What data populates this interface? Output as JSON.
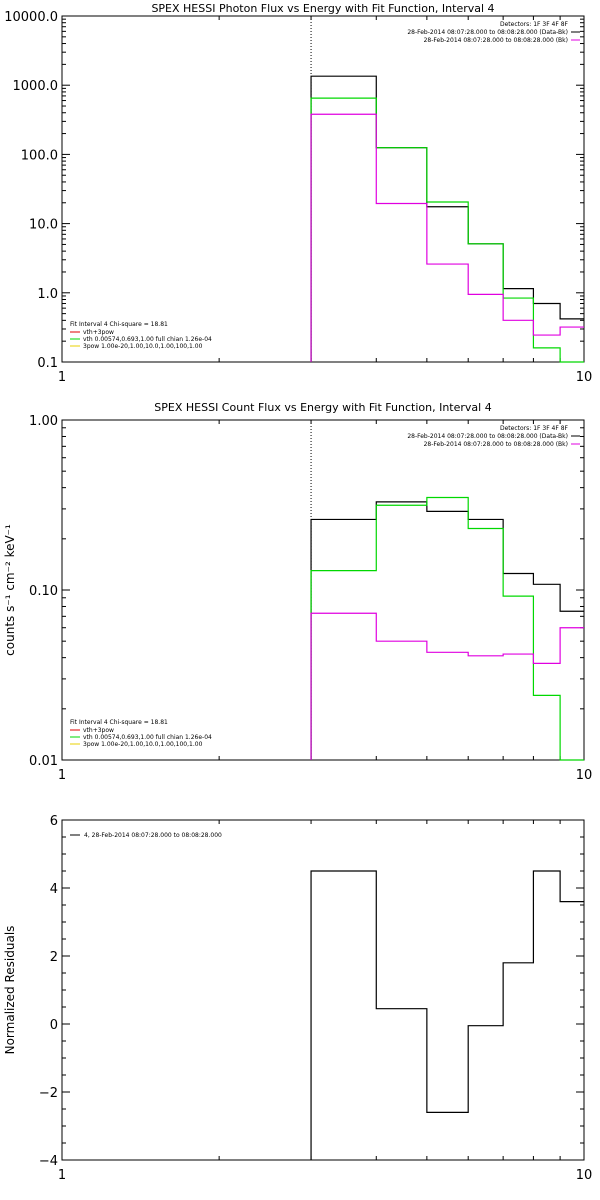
{
  "chart_data": [
    {
      "type": "step",
      "title": "SPEX HESSI Photon Flux vs Energy with Fit Function, Interval 4",
      "xscale": "log",
      "yscale": "log",
      "xlim": [
        1,
        10
      ],
      "ylim": [
        0.1,
        10000
      ],
      "xticklabels": [
        "1",
        "10"
      ],
      "yticks": [
        0.1,
        1,
        10,
        100,
        1000,
        10000
      ],
      "yticklabels": [
        "0.1",
        "1.0",
        "10.0",
        "100.0",
        "1000.0",
        "10000.0"
      ],
      "marker_x": 3,
      "bin_edges": [
        3,
        4,
        5,
        6,
        7,
        8,
        9,
        10
      ],
      "header": [
        {
          "text": "Detectors: 1F 3F 4F 8F",
          "color": ""
        },
        {
          "text": "28-Feb-2014 08:07:28.000 to 08:08:28.000 (Data-Bk)",
          "color": "#000000"
        },
        {
          "text": "28-Feb-2014 08:07:28.000 to 08:08:28.000 (Bk)",
          "color": "#e000e0"
        }
      ],
      "fit_info": "Fit Interval 4   Chi-square = 18.81",
      "components": [
        {
          "text": "vth+3pow",
          "color": "#e00000"
        },
        {
          "text": "vth 0.00574,0.693,1.00   full chian 1.26e-04",
          "color": "#00d800"
        },
        {
          "text": "3pow 1.00e-20,1.00,10.0,1.00,100,1.00",
          "color": "#e8d000"
        }
      ],
      "series": [
        {
          "color": "#000000",
          "values": [
            1350,
            125,
            17.5,
            5.1,
            1.15,
            0.7,
            0.42
          ]
        },
        {
          "color": "#00d800",
          "values": [
            650,
            125,
            20.5,
            5.1,
            0.84,
            0.16,
            0.05
          ]
        },
        {
          "color": "#e000e0",
          "values": [
            380,
            19.5,
            2.6,
            0.95,
            0.4,
            0.245,
            0.32
          ]
        }
      ]
    },
    {
      "type": "step",
      "title": "SPEX HESSI Count Flux vs Energy with Fit Function, Interval 4",
      "ylabel": "counts s⁻¹ cm⁻² keV⁻¹",
      "xscale": "log",
      "yscale": "log",
      "xlim": [
        1,
        10
      ],
      "ylim": [
        0.01,
        1
      ],
      "xticklabels": [
        "1",
        "10"
      ],
      "yticks": [
        0.01,
        0.1,
        1
      ],
      "yticklabels": [
        "0.01",
        "0.10",
        "1.00"
      ],
      "marker_x": 3,
      "bin_edges": [
        3,
        4,
        5,
        6,
        7,
        8,
        9,
        10
      ],
      "header": [
        {
          "text": "Detectors: 1F 3F 4F 8F",
          "color": ""
        },
        {
          "text": "28-Feb-2014 08:07:28.000 to 08:08:28.000 (Data-Bk)",
          "color": "#000000"
        },
        {
          "text": "28-Feb-2014 08:07:28.000 to 08:08:28.000 (Bk)",
          "color": "#e000e0"
        }
      ],
      "fit_info": "Fit Interval 4   Chi-square = 18.81",
      "components": [
        {
          "text": "vth+3pow",
          "color": "#e00000"
        },
        {
          "text": "vth 0.00574,0.693,1.00   full chian 1.26e-04",
          "color": "#00d800"
        },
        {
          "text": "3pow 1.00e-20,1.00,10.0,1.00,100,1.00",
          "color": "#e8d000"
        }
      ],
      "series": [
        {
          "color": "#000000",
          "values": [
            0.26,
            0.33,
            0.29,
            0.26,
            0.125,
            0.108,
            0.075
          ]
        },
        {
          "color": "#00d800",
          "values": [
            0.13,
            0.315,
            0.35,
            0.23,
            0.092,
            0.024,
            0.005
          ]
        },
        {
          "color": "#e000e0",
          "values": [
            0.073,
            0.05,
            0.043,
            0.041,
            0.042,
            0.037,
            0.06
          ]
        }
      ]
    },
    {
      "type": "step",
      "ylabel": "Normalized Residuals",
      "xscale": "log",
      "yscale": "linear",
      "xlim": [
        1,
        10
      ],
      "ylim": [
        -4,
        6
      ],
      "xticklabels": [
        "1",
        "10"
      ],
      "yticks": [
        -4,
        -2,
        0,
        2,
        4,
        6
      ],
      "yticklabels": [
        "−4",
        "−2",
        "0",
        "2",
        "4",
        "6"
      ],
      "bin_edges": [
        3,
        4,
        5,
        6,
        7,
        8,
        9,
        10
      ],
      "legend": "4, 28-Feb-2014 08:07:28.000 to 08:08:28.000",
      "series": [
        {
          "color": "#000000",
          "values": [
            4.5,
            0.45,
            -2.6,
            -0.05,
            1.8,
            4.5,
            3.6
          ]
        }
      ]
    }
  ]
}
